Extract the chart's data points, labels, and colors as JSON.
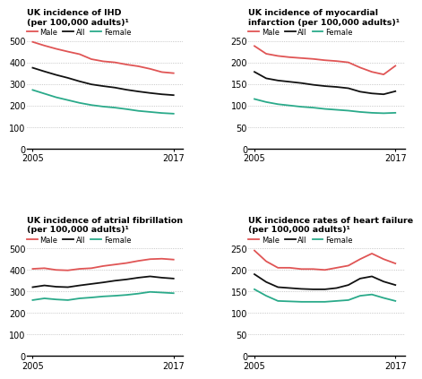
{
  "years": [
    2005,
    2006,
    2007,
    2008,
    2009,
    2010,
    2011,
    2012,
    2013,
    2014,
    2015,
    2016,
    2017
  ],
  "ihd": {
    "male": [
      495,
      478,
      463,
      450,
      438,
      415,
      405,
      400,
      390,
      382,
      370,
      355,
      350
    ],
    "all": [
      375,
      358,
      342,
      328,
      312,
      298,
      290,
      283,
      273,
      265,
      258,
      252,
      248
    ],
    "female": [
      272,
      255,
      238,
      225,
      212,
      202,
      195,
      190,
      183,
      175,
      170,
      165,
      162
    ]
  },
  "mi": {
    "male": [
      238,
      220,
      215,
      212,
      210,
      208,
      205,
      203,
      200,
      188,
      178,
      172,
      192
    ],
    "all": [
      178,
      163,
      158,
      155,
      152,
      148,
      145,
      143,
      140,
      132,
      128,
      126,
      133
    ],
    "female": [
      115,
      108,
      103,
      100,
      97,
      95,
      92,
      90,
      88,
      85,
      83,
      82,
      83
    ]
  },
  "af": {
    "male": [
      405,
      408,
      400,
      398,
      405,
      408,
      418,
      425,
      432,
      442,
      450,
      452,
      448
    ],
    "all": [
      320,
      328,
      322,
      320,
      328,
      335,
      342,
      350,
      356,
      364,
      370,
      364,
      360
    ],
    "female": [
      260,
      268,
      263,
      260,
      268,
      272,
      277,
      280,
      284,
      290,
      298,
      295,
      292
    ]
  },
  "hf": {
    "male": [
      245,
      220,
      205,
      205,
      202,
      202,
      200,
      205,
      210,
      225,
      238,
      225,
      215
    ],
    "all": [
      190,
      172,
      160,
      158,
      156,
      155,
      155,
      158,
      165,
      180,
      185,
      173,
      165
    ],
    "female": [
      155,
      140,
      128,
      127,
      126,
      126,
      126,
      128,
      130,
      140,
      143,
      135,
      128
    ]
  },
  "colors": {
    "male": "#e05555",
    "all": "#111111",
    "female": "#2aaa8a"
  },
  "titles": {
    "ihd": "UK incidence of IHD\n(per 100,000 adults)¹",
    "mi": "UK incidence of myocardial\ninfarction (per 100,000 adults)¹",
    "af": "UK incidence of atrial fibrillation\n(per 100,000 adults)¹",
    "hf": "UK incidence rates of heart failure\n(per 100,000 adults)¹"
  },
  "ylims": {
    "ihd": [
      0,
      560
    ],
    "mi": [
      0,
      280
    ],
    "af": [
      0,
      560
    ],
    "hf": [
      0,
      280
    ]
  },
  "yticks": {
    "ihd": [
      0,
      100,
      200,
      300,
      400,
      500
    ],
    "mi": [
      0,
      50,
      100,
      150,
      200,
      250
    ],
    "af": [
      0,
      100,
      200,
      300,
      400,
      500
    ],
    "hf": [
      0,
      50,
      100,
      150,
      200,
      250
    ]
  },
  "background_color": "#ffffff"
}
